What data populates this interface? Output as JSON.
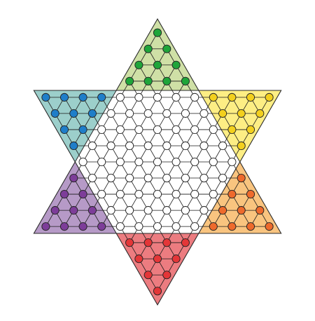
{
  "board": {
    "type": "chinese-checkers",
    "rows": 17,
    "empty_hole_color": "#ffffff",
    "line_color": "#1a1a1a",
    "triangles": {
      "top": {
        "fill": "#cfe0a6",
        "peg_color": "#1fa53a",
        "pegs": 10
      },
      "upper_left": {
        "fill": "#9ccfcb",
        "peg_color": "#1f7ec9",
        "pegs": 10
      },
      "upper_right": {
        "fill": "#fdee84",
        "peg_color": "#f3d01d",
        "pegs": 10
      },
      "lower_left": {
        "fill": "#b69ac7",
        "peg_color": "#7d3d99",
        "pegs": 10
      },
      "lower_right": {
        "fill": "#f9c47f",
        "peg_color": "#ee6a2c",
        "pegs": 10
      },
      "bottom": {
        "fill": "#ec7c80",
        "peg_color": "#e43638",
        "pegs": 10
      }
    },
    "center_holes": 61
  }
}
